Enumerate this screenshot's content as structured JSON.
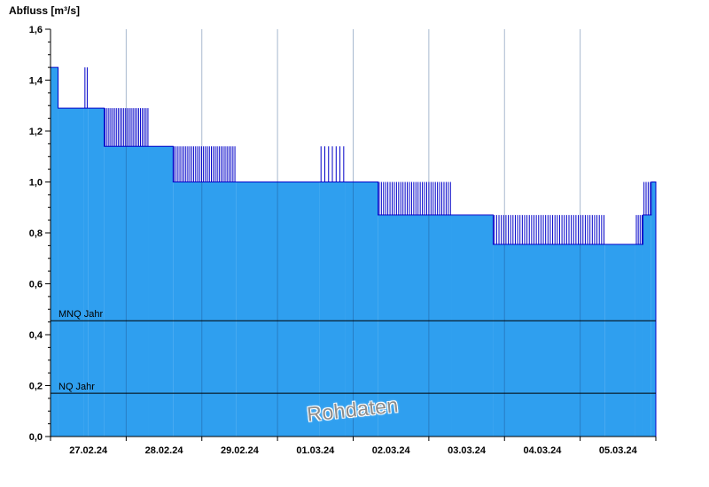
{
  "chart_data": {
    "type": "area",
    "title": "Abfluss [m³/s]",
    "watermark": "Rohdaten",
    "ylabel": "Abfluss [m³/s]",
    "xlabel": "",
    "ylim": [
      0,
      1.6
    ],
    "ytick_step": 0.2,
    "ytick_minor_step": 0.05,
    "ytick_labels": [
      "0,0",
      "0,2",
      "0,4",
      "0,6",
      "0,8",
      "1,0",
      "1,2",
      "1,4",
      "1,6"
    ],
    "x_categories": [
      "27.02.24",
      "28.02.24",
      "29.02.24",
      "01.03.24",
      "02.03.24",
      "03.03.24",
      "04.03.24",
      "05.03.24"
    ],
    "x_range_days": [
      0,
      8
    ],
    "grid": "vertical-daily",
    "legend": "none",
    "reference_lines": [
      {
        "label": "MNQ Jahr",
        "value": 0.455
      },
      {
        "label": "NQ Jahr",
        "value": 0.17
      }
    ],
    "colors": {
      "fill": "#2F9FEF",
      "line": "#0000C8",
      "grid": "rgba(25,70,130,0.38)",
      "axis": "#000000",
      "watermark": "#8C8C8C"
    },
    "segments": [
      {
        "t0": 0.0,
        "t1": 0.1,
        "base": 1.45,
        "spike": null,
        "lines": 0
      },
      {
        "t0": 0.1,
        "t1": 0.44,
        "base": 1.29,
        "spike": null,
        "lines": 0
      },
      {
        "t0": 0.44,
        "t1": 0.5,
        "base": 1.29,
        "spike": 1.45,
        "lines": 2
      },
      {
        "t0": 0.5,
        "t1": 0.71,
        "base": 1.29,
        "spike": null,
        "lines": 0
      },
      {
        "t0": 0.71,
        "t1": 1.3,
        "base": 1.14,
        "spike": 1.29,
        "lines": 24
      },
      {
        "t0": 1.3,
        "t1": 1.62,
        "base": 1.14,
        "spike": null,
        "lines": 0
      },
      {
        "t0": 1.62,
        "t1": 2.45,
        "base": 1.0,
        "spike": 1.14,
        "lines": 32
      },
      {
        "t0": 2.45,
        "t1": 3.55,
        "base": 1.0,
        "spike": null,
        "lines": 0
      },
      {
        "t0": 3.55,
        "t1": 3.9,
        "base": 1.0,
        "spike": 1.14,
        "lines": 7
      },
      {
        "t0": 3.9,
        "t1": 4.33,
        "base": 1.0,
        "spike": null,
        "lines": 0
      },
      {
        "t0": 4.33,
        "t1": 5.3,
        "base": 0.87,
        "spike": 1.0,
        "lines": 34
      },
      {
        "t0": 5.3,
        "t1": 5.85,
        "base": 0.87,
        "spike": null,
        "lines": 0
      },
      {
        "t0": 5.85,
        "t1": 7.33,
        "base": 0.755,
        "spike": 0.87,
        "lines": 48
      },
      {
        "t0": 7.33,
        "t1": 7.73,
        "base": 0.755,
        "spike": null,
        "lines": 0
      },
      {
        "t0": 7.73,
        "t1": 7.83,
        "base": 0.755,
        "spike": 0.87,
        "lines": 4
      },
      {
        "t0": 7.83,
        "t1": 7.94,
        "base": 0.87,
        "spike": 1.0,
        "lines": 4
      },
      {
        "t0": 7.94,
        "t1": 8.0,
        "base": 1.0,
        "spike": null,
        "lines": 0
      }
    ]
  }
}
